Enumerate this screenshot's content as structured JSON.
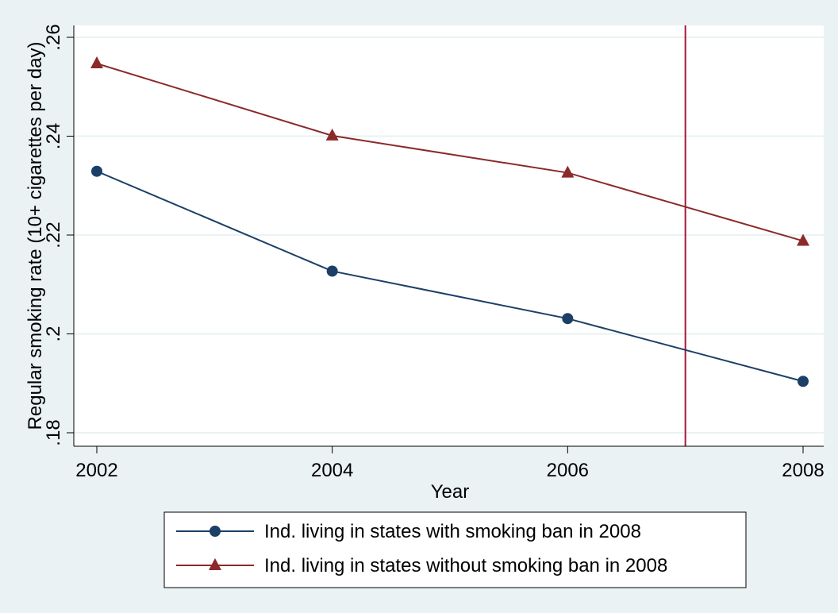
{
  "chart_data": {
    "type": "line",
    "title": "",
    "xlabel": "Year",
    "ylabel": "Regular smoking rate (10+ cigarettes per day)",
    "x": [
      2002,
      2004,
      2006,
      2008
    ],
    "xlim": [
      2002,
      2008
    ],
    "ylim": [
      0.18,
      0.26
    ],
    "x_ticks": [
      {
        "value": 2002,
        "label": "2002"
      },
      {
        "value": 2004,
        "label": "2004"
      },
      {
        "value": 2006,
        "label": "2006"
      },
      {
        "value": 2008,
        "label": "2008"
      }
    ],
    "y_ticks": [
      {
        "value": 0.18,
        "label": ".18"
      },
      {
        "value": 0.2,
        "label": ".2"
      },
      {
        "value": 0.22,
        "label": ".22"
      },
      {
        "value": 0.24,
        "label": ".24"
      },
      {
        "value": 0.26,
        "label": ".26"
      }
    ],
    "grid": true,
    "vertical_reference_line": {
      "x": 2007,
      "color": "#a8163a"
    },
    "series": [
      {
        "name": "Ind. living in states with smoking ban in 2008",
        "values": [
          0.2329,
          0.2127,
          0.2031,
          0.1904
        ],
        "color": "#1c3f67",
        "marker": "circle"
      },
      {
        "name": "Ind. living in states without smoking ban in 2008",
        "values": [
          0.2547,
          0.2401,
          0.2326,
          0.2188
        ],
        "color": "#8b2a2a",
        "marker": "triangle"
      }
    ],
    "legend_placement": "bottom"
  },
  "colors": {
    "background": "#eaf2f3",
    "plot_background": "#ffffff",
    "gridline": "#eaf2f3"
  }
}
